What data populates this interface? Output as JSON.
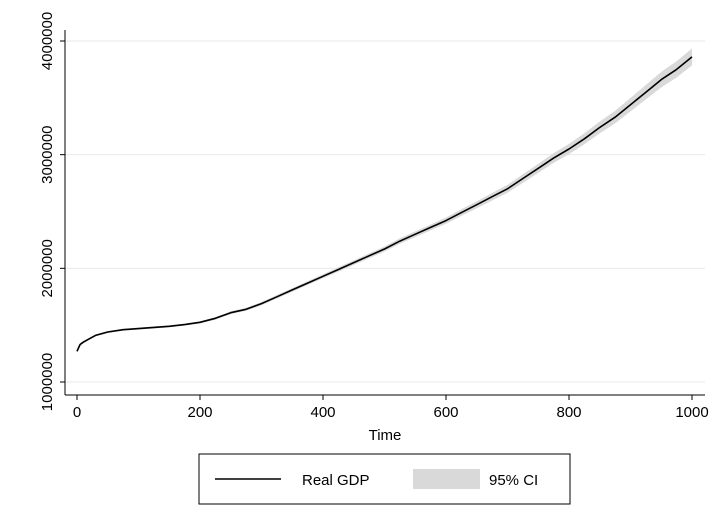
{
  "chart_data": {
    "type": "line",
    "title": "",
    "xlabel": "Time",
    "ylabel": "",
    "xlim": [
      0,
      1000
    ],
    "ylim": [
      1000000,
      4000000
    ],
    "xticks": [
      0,
      200,
      400,
      600,
      800,
      1000
    ],
    "xtick_labels": [
      "0",
      "200",
      "400",
      "600",
      "800",
      "1000"
    ],
    "yticks": [
      1000000,
      2000000,
      3000000,
      4000000
    ],
    "ytick_labels": [
      "1000000",
      "2000000",
      "3000000",
      "4000000"
    ],
    "grid": "horizontal",
    "legend_position": "bottom",
    "series": [
      {
        "name": "Real GDP",
        "color": "#000000",
        "x": [
          0,
          5,
          10,
          20,
          30,
          50,
          75,
          100,
          125,
          150,
          175,
          200,
          225,
          250,
          275,
          300,
          325,
          350,
          375,
          400,
          425,
          450,
          475,
          500,
          525,
          550,
          575,
          600,
          625,
          650,
          675,
          700,
          725,
          750,
          775,
          800,
          825,
          850,
          875,
          900,
          925,
          950,
          975,
          1000
        ],
        "y": [
          1270000,
          1330000,
          1350000,
          1380000,
          1410000,
          1440000,
          1460000,
          1470000,
          1480000,
          1490000,
          1505000,
          1525000,
          1560000,
          1610000,
          1640000,
          1690000,
          1750000,
          1810000,
          1870000,
          1930000,
          1990000,
          2050000,
          2110000,
          2170000,
          2240000,
          2300000,
          2360000,
          2420000,
          2490000,
          2560000,
          2630000,
          2700000,
          2790000,
          2880000,
          2970000,
          3050000,
          3140000,
          3240000,
          3330000,
          3440000,
          3550000,
          3660000,
          3750000,
          3860000
        ]
      },
      {
        "name": "95% CI",
        "type": "area",
        "color": "#d9d9d9",
        "x": [
          0,
          5,
          10,
          20,
          30,
          50,
          75,
          100,
          125,
          150,
          175,
          200,
          225,
          250,
          275,
          300,
          325,
          350,
          375,
          400,
          425,
          450,
          475,
          500,
          525,
          550,
          575,
          600,
          625,
          650,
          675,
          700,
          725,
          750,
          775,
          800,
          825,
          850,
          875,
          900,
          925,
          950,
          975,
          1000
        ],
        "lower": [
          1255000,
          1318000,
          1340000,
          1371000,
          1401000,
          1431000,
          1451000,
          1461000,
          1471000,
          1481000,
          1496000,
          1515000,
          1549000,
          1598000,
          1627000,
          1676000,
          1735000,
          1794000,
          1853000,
          1912000,
          1971000,
          2030000,
          2089000,
          2148000,
          2216000,
          2275000,
          2334000,
          2393000,
          2461000,
          2529000,
          2597000,
          2665000,
          2752000,
          2840000,
          2928000,
          3005000,
          3092000,
          3188000,
          3275000,
          3381000,
          3486000,
          3592000,
          3679000,
          3785000
        ],
        "upper": [
          1285000,
          1342000,
          1360000,
          1389000,
          1419000,
          1449000,
          1469000,
          1479000,
          1489000,
          1499000,
          1514000,
          1535000,
          1571000,
          1622000,
          1653000,
          1704000,
          1765000,
          1826000,
          1887000,
          1948000,
          2009000,
          2070000,
          2131000,
          2192000,
          2264000,
          2325000,
          2386000,
          2447000,
          2519000,
          2591000,
          2663000,
          2735000,
          2828000,
          2920000,
          3012000,
          3095000,
          3188000,
          3292000,
          3385000,
          3499000,
          3614000,
          3728000,
          3821000,
          3935000
        ]
      }
    ]
  }
}
